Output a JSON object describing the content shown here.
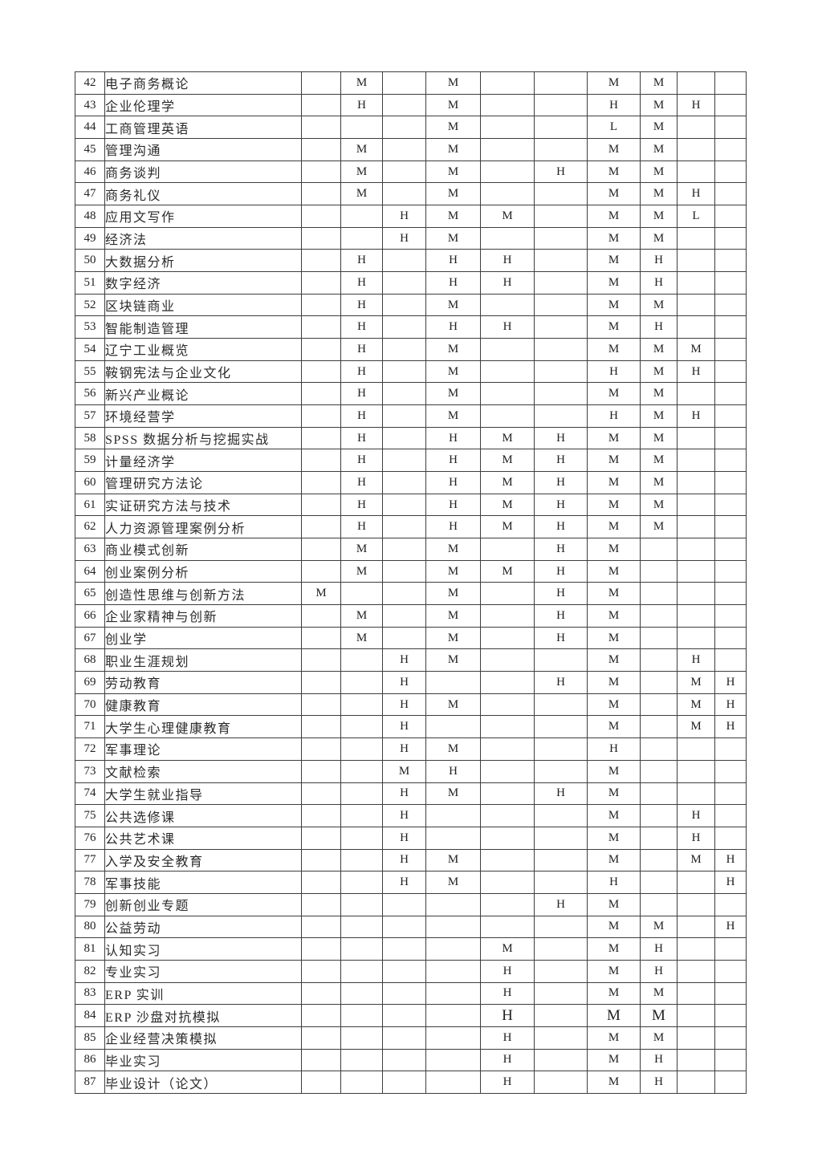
{
  "document": {
    "type": "curriculum-correlation-matrix-page",
    "background_color": "#ffffff",
    "border_color": "#3d3d3d",
    "text_color": "#222222",
    "levels_legend_values": [
      "H",
      "M",
      "L"
    ],
    "value_column_count": 10
  },
  "table": {
    "rows": [
      {
        "num": "42",
        "course": "电子商务概论",
        "values": [
          "",
          "M",
          "",
          "M",
          "",
          "",
          "M",
          "M",
          "",
          ""
        ]
      },
      {
        "num": "43",
        "course": "企业伦理学",
        "values": [
          "",
          "H",
          "",
          "M",
          "",
          "",
          "H",
          "M",
          "H",
          ""
        ]
      },
      {
        "num": "44",
        "course": "工商管理英语",
        "values": [
          "",
          "",
          "",
          "M",
          "",
          "",
          "L",
          "M",
          "",
          ""
        ]
      },
      {
        "num": "45",
        "course": "管理沟通",
        "values": [
          "",
          "M",
          "",
          "M",
          "",
          "",
          "M",
          "M",
          "",
          ""
        ]
      },
      {
        "num": "46",
        "course": "商务谈判",
        "values": [
          "",
          "M",
          "",
          "M",
          "",
          "H",
          "M",
          "M",
          "",
          ""
        ]
      },
      {
        "num": "47",
        "course": "商务礼仪",
        "values": [
          "",
          "M",
          "",
          "M",
          "",
          "",
          "M",
          "M",
          "H",
          ""
        ]
      },
      {
        "num": "48",
        "course": "应用文写作",
        "values": [
          "",
          "",
          "H",
          "M",
          "M",
          "",
          "M",
          "M",
          "L",
          ""
        ]
      },
      {
        "num": "49",
        "course": "经济法",
        "values": [
          "",
          "",
          "H",
          "M",
          "",
          "",
          "M",
          "M",
          "",
          ""
        ]
      },
      {
        "num": "50",
        "course": "大数据分析",
        "values": [
          "",
          "H",
          "",
          "H",
          "H",
          "",
          "M",
          "H",
          "",
          ""
        ]
      },
      {
        "num": "51",
        "course": "数字经济",
        "values": [
          "",
          "H",
          "",
          "H",
          "H",
          "",
          "M",
          "H",
          "",
          ""
        ]
      },
      {
        "num": "52",
        "course": "区块链商业",
        "values": [
          "",
          "H",
          "",
          "M",
          "",
          "",
          "M",
          "M",
          "",
          ""
        ]
      },
      {
        "num": "53",
        "course": "智能制造管理",
        "values": [
          "",
          "H",
          "",
          "H",
          "H",
          "",
          "M",
          "H",
          "",
          ""
        ]
      },
      {
        "num": "54",
        "course": "辽宁工业概览",
        "values": [
          "",
          "H",
          "",
          "M",
          "",
          "",
          "M",
          "M",
          "M",
          ""
        ]
      },
      {
        "num": "55",
        "course": "鞍钢宪法与企业文化",
        "values": [
          "",
          "H",
          "",
          "M",
          "",
          "",
          "H",
          "M",
          "H",
          ""
        ]
      },
      {
        "num": "56",
        "course": "新兴产业概论",
        "values": [
          "",
          "H",
          "",
          "M",
          "",
          "",
          "M",
          "M",
          "",
          ""
        ]
      },
      {
        "num": "57",
        "course": "环境经营学",
        "values": [
          "",
          "H",
          "",
          "M",
          "",
          "",
          "H",
          "M",
          "H",
          ""
        ]
      },
      {
        "num": "58",
        "course": "SPSS 数据分析与挖掘实战",
        "values": [
          "",
          "H",
          "",
          "H",
          "M",
          "H",
          "M",
          "M",
          "",
          ""
        ]
      },
      {
        "num": "59",
        "course": "计量经济学",
        "values": [
          "",
          "H",
          "",
          "H",
          "M",
          "H",
          "M",
          "M",
          "",
          ""
        ]
      },
      {
        "num": "60",
        "course": "管理研究方法论",
        "values": [
          "",
          "H",
          "",
          "H",
          "M",
          "H",
          "M",
          "M",
          "",
          ""
        ]
      },
      {
        "num": "61",
        "course": "实证研究方法与技术",
        "values": [
          "",
          "H",
          "",
          "H",
          "M",
          "H",
          "M",
          "M",
          "",
          ""
        ]
      },
      {
        "num": "62",
        "course": "人力资源管理案例分析",
        "values": [
          "",
          "H",
          "",
          "H",
          "M",
          "H",
          "M",
          "M",
          "",
          ""
        ]
      },
      {
        "num": "63",
        "course": "商业模式创新",
        "values": [
          "",
          "M",
          "",
          "M",
          "",
          "H",
          "M",
          "",
          "",
          ""
        ]
      },
      {
        "num": "64",
        "course": "创业案例分析",
        "values": [
          "",
          "M",
          "",
          "M",
          "M",
          "H",
          "M",
          "",
          "",
          ""
        ]
      },
      {
        "num": "65",
        "course": "创造性思维与创新方法",
        "values": [
          "M",
          "",
          "",
          "M",
          "",
          "H",
          "M",
          "",
          "",
          ""
        ]
      },
      {
        "num": "66",
        "course": "企业家精神与创新",
        "values": [
          "",
          "M",
          "",
          "M",
          "",
          "H",
          "M",
          "",
          "",
          ""
        ]
      },
      {
        "num": "67",
        "course": "创业学",
        "values": [
          "",
          "M",
          "",
          "M",
          "",
          "H",
          "M",
          "",
          "",
          ""
        ]
      },
      {
        "num": "68",
        "course": "职业生涯规划",
        "values": [
          "",
          "",
          "H",
          "M",
          "",
          "",
          "M",
          "",
          "H",
          ""
        ]
      },
      {
        "num": "69",
        "course": "劳动教育",
        "values": [
          "",
          "",
          "H",
          "",
          "",
          "H",
          "M",
          "",
          "M",
          "H"
        ]
      },
      {
        "num": "70",
        "course": "健康教育",
        "values": [
          "",
          "",
          "H",
          "M",
          "",
          "",
          "M",
          "",
          "M",
          "H"
        ]
      },
      {
        "num": "71",
        "course": "大学生心理健康教育",
        "values": [
          "",
          "",
          "H",
          "",
          "",
          "",
          "M",
          "",
          "M",
          "H"
        ]
      },
      {
        "num": "72",
        "course": "军事理论",
        "values": [
          "",
          "",
          "H",
          "M",
          "",
          "",
          "H",
          "",
          "",
          ""
        ]
      },
      {
        "num": "73",
        "course": "文献检索",
        "values": [
          "",
          "",
          "M",
          "H",
          "",
          "",
          "M",
          "",
          "",
          ""
        ]
      },
      {
        "num": "74",
        "course": "大学生就业指导",
        "values": [
          "",
          "",
          "H",
          "M",
          "",
          "H",
          "M",
          "",
          "",
          ""
        ]
      },
      {
        "num": "75",
        "course": "公共选修课",
        "values": [
          "",
          "",
          "H",
          "",
          "",
          "",
          "M",
          "",
          "H",
          ""
        ]
      },
      {
        "num": "76",
        "course": "公共艺术课",
        "values": [
          "",
          "",
          "H",
          "",
          "",
          "",
          "M",
          "",
          "H",
          ""
        ]
      },
      {
        "num": "77",
        "course": "入学及安全教育",
        "values": [
          "",
          "",
          "H",
          "M",
          "",
          "",
          "M",
          "",
          "M",
          "H"
        ]
      },
      {
        "num": "78",
        "course": "军事技能",
        "values": [
          "",
          "",
          "H",
          "M",
          "",
          "",
          "H",
          "",
          "",
          "H"
        ]
      },
      {
        "num": "79",
        "course": "创新创业专题",
        "values": [
          "",
          "",
          "",
          "",
          "",
          "H",
          "M",
          "",
          "",
          ""
        ]
      },
      {
        "num": "80",
        "course": "公益劳动",
        "values": [
          "",
          "",
          "",
          "",
          "",
          "",
          "M",
          "M",
          "",
          "H"
        ]
      },
      {
        "num": "81",
        "course": "认知实习",
        "values": [
          "",
          "",
          "",
          "",
          "M",
          "",
          "M",
          "H",
          "",
          ""
        ]
      },
      {
        "num": "82",
        "course": "专业实习",
        "values": [
          "",
          "",
          "",
          "",
          "H",
          "",
          "M",
          "H",
          "",
          ""
        ]
      },
      {
        "num": "83",
        "course": "ERP 实训",
        "values": [
          "",
          "",
          "",
          "",
          "H",
          "",
          "M",
          "M",
          "",
          ""
        ]
      },
      {
        "num": "84",
        "course": "ERP 沙盘对抗模拟",
        "values": [
          "",
          "",
          "",
          "",
          "H",
          "",
          "M",
          "M",
          "",
          ""
        ],
        "emphasis": true
      },
      {
        "num": "85",
        "course": "企业经营决策模拟",
        "values": [
          "",
          "",
          "",
          "",
          "H",
          "",
          "M",
          "M",
          "",
          ""
        ]
      },
      {
        "num": "86",
        "course": "毕业实习",
        "values": [
          "",
          "",
          "",
          "",
          "H",
          "",
          "M",
          "H",
          "",
          ""
        ]
      },
      {
        "num": "87",
        "course": "毕业设计（论文）",
        "values": [
          "",
          "",
          "",
          "",
          "H",
          "",
          "M",
          "H",
          "",
          ""
        ]
      }
    ]
  }
}
